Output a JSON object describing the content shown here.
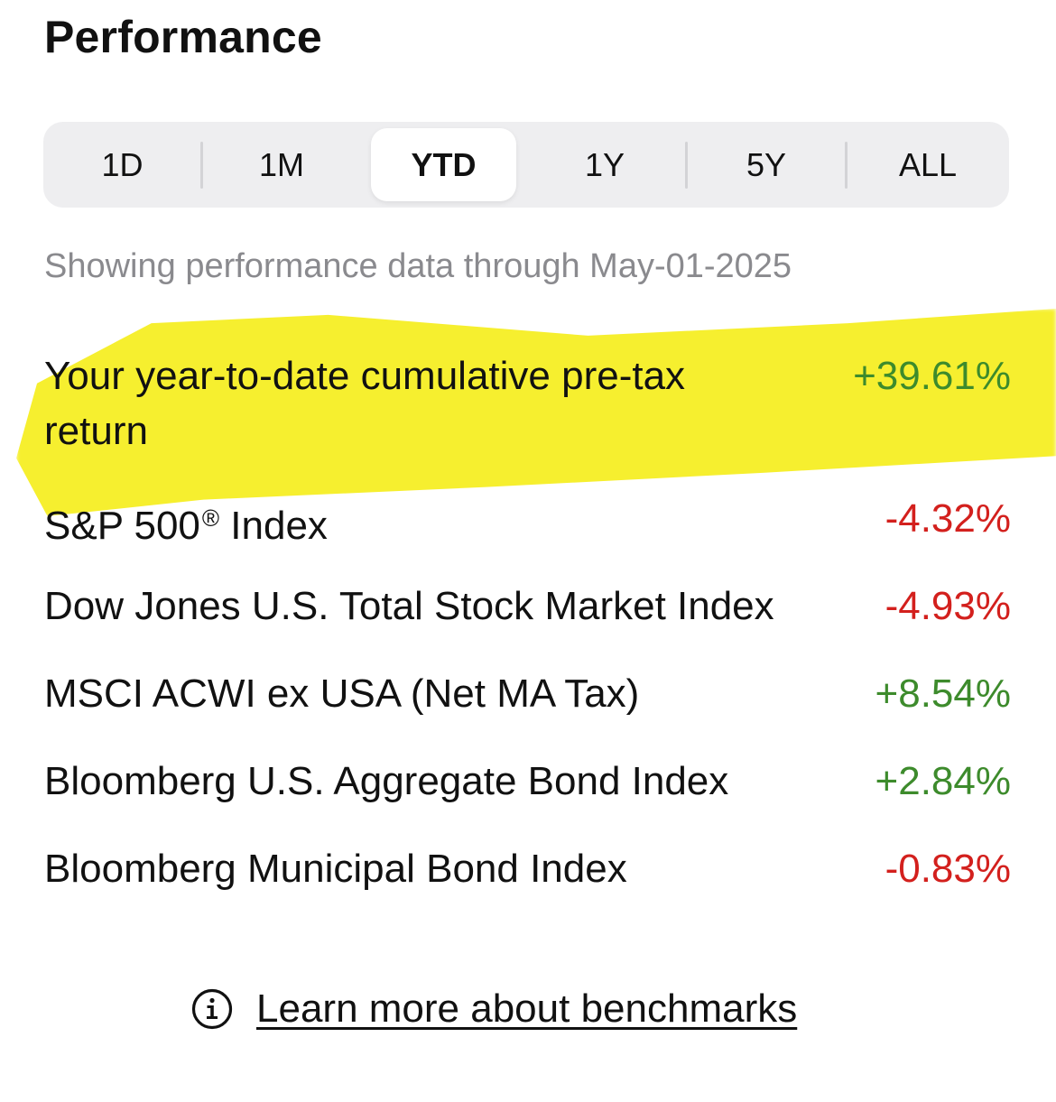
{
  "header": {
    "title": "Performance"
  },
  "tabs": [
    {
      "label": "1D",
      "active": false
    },
    {
      "label": "1M",
      "active": false
    },
    {
      "label": "YTD",
      "active": true
    },
    {
      "label": "1Y",
      "active": false
    },
    {
      "label": "5Y",
      "active": false
    },
    {
      "label": "ALL",
      "active": false
    }
  ],
  "subtitle": "Showing performance data through May-01-2025",
  "rows": [
    {
      "label": "Your year-to-date cumulative pre-tax return",
      "value": "+39.61%",
      "trend": "positive",
      "highlighted": true
    },
    {
      "label": "S&P 500",
      "label_suffix": "®",
      "label_after": " Index",
      "value": "-4.32%",
      "trend": "negative"
    },
    {
      "label": "Dow Jones U.S. Total Stock Market Index",
      "value": "-4.93%",
      "trend": "negative"
    },
    {
      "label": "MSCI ACWI ex USA (Net MA Tax)",
      "value": "+8.54%",
      "trend": "positive"
    },
    {
      "label": "Bloomberg U.S. Aggregate Bond Index",
      "value": "+2.84%",
      "trend": "positive"
    },
    {
      "label": "Bloomberg Municipal Bond Index",
      "value": "-0.83%",
      "trend": "negative"
    }
  ],
  "footer": {
    "icon": "info-icon",
    "link_text": "Learn more about benchmarks"
  },
  "colors": {
    "positive": "#3d8b2c",
    "negative": "#d3201d",
    "highlight": "#f6ef27",
    "muted_text": "#8a8a8e",
    "segment_bg": "#eeeef0"
  }
}
